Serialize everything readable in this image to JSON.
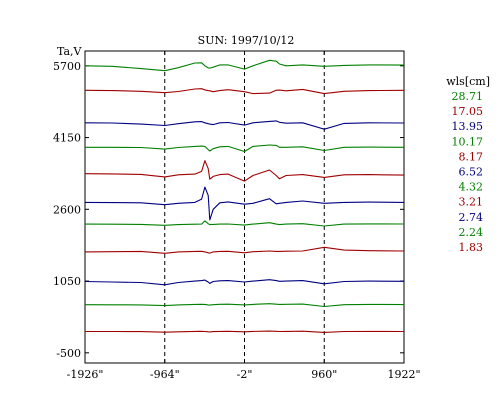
{
  "chart_data": {
    "type": "line",
    "title": "SUN: 1997/10/12",
    "ylabel": "Ta,V",
    "legend_title": "wls[cm]",
    "legend_placement": "right",
    "xlim": [
      -1926,
      1922
    ],
    "ylim": [
      -720,
      6020
    ],
    "x_ticks": [
      -1926,
      -964,
      -2,
      960,
      1922
    ],
    "x_tick_labels": [
      "-1926\"",
      "-964\"",
      "-2\"",
      "960\"",
      "1922\""
    ],
    "y_ticks": [
      5700,
      4150,
      2600,
      1050,
      -500
    ],
    "y_tick_labels": [
      "5700",
      "4150",
      "2600",
      "1050",
      "-500"
    ],
    "vertical_dashed_lines_at": [
      -964,
      -2,
      960
    ],
    "grid": false,
    "colors": {
      "green": "#008000",
      "red": "#a00000",
      "blue": "#000080"
    },
    "x": [
      -1926,
      -1600,
      -1250,
      -964,
      -800,
      -600,
      -520,
      -480,
      -440,
      -420,
      -380,
      -300,
      -200,
      -2,
      100,
      300,
      380,
      420,
      500,
      700,
      960,
      1200,
      1500,
      1922
    ],
    "series": [
      {
        "name": "28.71",
        "color": "green",
        "values": [
          5700,
          5690,
          5640,
          5595,
          5660,
          5760,
          5765,
          5700,
          5655,
          5650,
          5670,
          5720,
          5720,
          5630,
          5700,
          5820,
          5800,
          5740,
          5700,
          5720,
          5690,
          5710,
          5720,
          5715
        ]
      },
      {
        "name": "17.05",
        "color": "red",
        "values": [
          5170,
          5165,
          5150,
          5120,
          5145,
          5200,
          5205,
          5180,
          5165,
          5160,
          5140,
          5165,
          5185,
          5140,
          5100,
          5110,
          5170,
          5175,
          5160,
          5190,
          5100,
          5150,
          5165,
          5170
        ]
      },
      {
        "name": "13.95",
        "color": "blue",
        "values": [
          4470,
          4465,
          4440,
          4410,
          4450,
          4490,
          4495,
          4470,
          4450,
          4440,
          4430,
          4470,
          4475,
          4420,
          4470,
          4500,
          4510,
          4480,
          4460,
          4470,
          4330,
          4455,
          4470,
          4465
        ]
      },
      {
        "name": "10.17",
        "color": "green",
        "values": [
          3940,
          3940,
          3935,
          3900,
          3935,
          3960,
          3965,
          3960,
          3890,
          3860,
          3910,
          3950,
          3960,
          3850,
          3960,
          3990,
          3980,
          3940,
          3940,
          3950,
          3870,
          3940,
          3945,
          3940
        ]
      },
      {
        "name": "8.17",
        "color": "red",
        "values": [
          3370,
          3365,
          3355,
          3300,
          3345,
          3360,
          3420,
          3650,
          3480,
          3250,
          3310,
          3350,
          3360,
          3210,
          3330,
          3450,
          3330,
          3260,
          3330,
          3350,
          3290,
          3345,
          3350,
          3340
        ]
      },
      {
        "name": "6.52",
        "color": "blue",
        "values": [
          2750,
          2745,
          2740,
          2700,
          2730,
          2750,
          2820,
          3080,
          2900,
          2370,
          2600,
          2740,
          2760,
          2710,
          2730,
          2830,
          2720,
          2730,
          2750,
          2780,
          2730,
          2750,
          2755,
          2750
        ]
      },
      {
        "name": "4.32",
        "color": "green",
        "values": [
          2280,
          2278,
          2275,
          2255,
          2270,
          2278,
          2280,
          2350,
          2290,
          2270,
          2275,
          2280,
          2282,
          2260,
          2280,
          2310,
          2280,
          2270,
          2280,
          2290,
          2240,
          2280,
          2285,
          2282
        ]
      },
      {
        "name": "3.21",
        "color": "red",
        "values": [
          1680,
          1685,
          1690,
          1650,
          1680,
          1690,
          1692,
          1680,
          1660,
          1655,
          1680,
          1690,
          1693,
          1660,
          1685,
          1700,
          1690,
          1690,
          1695,
          1700,
          1780,
          1720,
          1705,
          1700
        ]
      },
      {
        "name": "2.74",
        "color": "blue",
        "values": [
          1040,
          1030,
          1020,
          970,
          1020,
          1050,
          1060,
          1070,
          1030,
          1000,
          1040,
          1055,
          1060,
          1030,
          1050,
          1080,
          1060,
          1045,
          1050,
          1060,
          990,
          1040,
          1050,
          1045
        ]
      },
      {
        "name": "2.24",
        "color": "green",
        "values": [
          540,
          538,
          536,
          520,
          535,
          545,
          548,
          545,
          535,
          530,
          540,
          548,
          550,
          535,
          545,
          560,
          550,
          545,
          548,
          552,
          500,
          540,
          545,
          542
        ]
      },
      {
        "name": "1.83",
        "color": "red",
        "values": [
          -40,
          -40,
          -42,
          -55,
          -45,
          -38,
          -36,
          -40,
          -45,
          -48,
          -42,
          -38,
          -36,
          -45,
          -38,
          -30,
          -36,
          -40,
          -38,
          -34,
          -60,
          -40,
          -38,
          -40
        ]
      }
    ]
  }
}
